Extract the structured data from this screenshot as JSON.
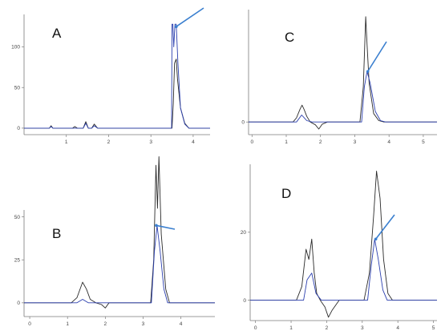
{
  "colors": {
    "trace_black": "#2a2a2a",
    "trace_blue": "#2b3fae",
    "arrow": "#3a7fcf",
    "axis": "#7a7a7a"
  },
  "chart_data": [
    {
      "type": "line",
      "panel_label": "A",
      "xlim": [
        0,
        4.4
      ],
      "ylim": [
        -8,
        140
      ],
      "xticks": [
        1,
        2,
        3,
        4
      ],
      "yticks": [
        0,
        50,
        100
      ],
      "x_tick_labels": [
        "1",
        "2",
        "3",
        "4"
      ],
      "y_tick_labels": [
        "0",
        "50",
        "100"
      ],
      "grid": false,
      "series": [
        {
          "color": "trace_black",
          "points": [
            [
              0,
              0
            ],
            [
              0.6,
              0
            ],
            [
              0.64,
              3
            ],
            [
              0.68,
              0
            ],
            [
              1.15,
              0
            ],
            [
              1.2,
              2
            ],
            [
              1.26,
              0
            ],
            [
              1.4,
              0
            ],
            [
              1.46,
              8
            ],
            [
              1.52,
              0
            ],
            [
              1.6,
              0
            ],
            [
              1.66,
              5
            ],
            [
              1.74,
              0
            ],
            [
              3.5,
              0
            ],
            [
              3.53,
              30
            ],
            [
              3.56,
              80
            ],
            [
              3.6,
              85
            ],
            [
              3.63,
              60
            ],
            [
              3.7,
              25
            ],
            [
              3.8,
              6
            ],
            [
              3.9,
              0
            ],
            [
              4.4,
              0
            ]
          ]
        },
        {
          "color": "trace_blue",
          "points": [
            [
              0,
              0
            ],
            [
              0.6,
              0
            ],
            [
              0.64,
              2
            ],
            [
              0.68,
              0
            ],
            [
              1.4,
              0
            ],
            [
              1.46,
              6
            ],
            [
              1.52,
              0
            ],
            [
              1.6,
              0
            ],
            [
              1.66,
              3
            ],
            [
              1.74,
              0
            ],
            [
              3.49,
              0
            ],
            [
              3.5,
              128
            ],
            [
              3.52,
              128
            ],
            [
              3.54,
              100
            ],
            [
              3.57,
              128
            ],
            [
              3.6,
              128
            ],
            [
              3.64,
              80
            ],
            [
              3.7,
              25
            ],
            [
              3.8,
              5
            ],
            [
              3.9,
              0
            ],
            [
              4.4,
              0
            ]
          ]
        }
      ],
      "arrow_tip": [
        3.6,
        125
      ]
    },
    {
      "type": "line",
      "panel_label": "B",
      "xlim": [
        -0.15,
        4.9
      ],
      "ylim": [
        -8,
        54
      ],
      "xticks": [
        0,
        1,
        2,
        3,
        4
      ],
      "yticks": [
        0,
        25,
        50
      ],
      "x_tick_labels": [
        "0",
        "1",
        "2",
        "3",
        "4"
      ],
      "y_tick_labels": [
        "0",
        "25",
        "50"
      ],
      "grid": false,
      "series": [
        {
          "color": "trace_black",
          "points": [
            [
              -0.15,
              0
            ],
            [
              1.1,
              0
            ],
            [
              1.25,
              3
            ],
            [
              1.4,
              12
            ],
            [
              1.5,
              8
            ],
            [
              1.6,
              2
            ],
            [
              1.75,
              0
            ],
            [
              1.9,
              -1
            ],
            [
              2.0,
              -3
            ],
            [
              2.1,
              0
            ],
            [
              3.2,
              0
            ],
            [
              3.28,
              25
            ],
            [
              3.34,
              80
            ],
            [
              3.38,
              55
            ],
            [
              3.42,
              85
            ],
            [
              3.48,
              40
            ],
            [
              3.6,
              8
            ],
            [
              3.7,
              0
            ],
            [
              4.9,
              0
            ]
          ]
        },
        {
          "color": "trace_blue",
          "points": [
            [
              -0.15,
              0
            ],
            [
              1.25,
              0
            ],
            [
              1.4,
              2
            ],
            [
              1.55,
              0
            ],
            [
              3.22,
              0
            ],
            [
              3.3,
              30
            ],
            [
              3.37,
              45
            ],
            [
              3.45,
              30
            ],
            [
              3.55,
              8
            ],
            [
              3.65,
              0
            ],
            [
              4.9,
              0
            ]
          ]
        }
      ],
      "arrow_tip": [
        3.35,
        45
      ]
    },
    {
      "type": "line",
      "panel_label": "C",
      "xlim": [
        -0.1,
        5.4
      ],
      "ylim": [
        -18,
        160
      ],
      "xticks": [
        0,
        1,
        2,
        3,
        4,
        5
      ],
      "yticks": [
        0
      ],
      "x_tick_labels": [
        "0",
        "1",
        "2",
        "3",
        "4",
        "5"
      ],
      "y_tick_labels": [
        "0"
      ],
      "grid": false,
      "series": [
        {
          "color": "trace_black",
          "points": [
            [
              -0.1,
              0
            ],
            [
              1.2,
              0
            ],
            [
              1.3,
              6
            ],
            [
              1.4,
              18
            ],
            [
              1.46,
              24
            ],
            [
              1.52,
              18
            ],
            [
              1.6,
              8
            ],
            [
              1.7,
              0
            ],
            [
              1.85,
              -4
            ],
            [
              1.95,
              -10
            ],
            [
              2.05,
              -3
            ],
            [
              2.2,
              0
            ],
            [
              3.15,
              0
            ],
            [
              3.25,
              50
            ],
            [
              3.32,
              150
            ],
            [
              3.36,
              110
            ],
            [
              3.42,
              55
            ],
            [
              3.55,
              12
            ],
            [
              3.7,
              2
            ],
            [
              3.85,
              0
            ],
            [
              5.4,
              0
            ]
          ]
        },
        {
          "color": "trace_blue",
          "points": [
            [
              -0.1,
              0
            ],
            [
              1.3,
              0
            ],
            [
              1.45,
              10
            ],
            [
              1.6,
              2
            ],
            [
              1.75,
              0
            ],
            [
              3.2,
              0
            ],
            [
              3.28,
              50
            ],
            [
              3.36,
              72
            ],
            [
              3.45,
              55
            ],
            [
              3.6,
              15
            ],
            [
              3.75,
              2
            ],
            [
              3.9,
              0
            ],
            [
              5.4,
              0
            ]
          ]
        }
      ],
      "arrow_tip": [
        3.38,
        72
      ]
    },
    {
      "type": "line",
      "panel_label": "D",
      "xlim": [
        -0.15,
        5.1
      ],
      "ylim": [
        -6,
        40
      ],
      "xticks": [
        0,
        1,
        2,
        3,
        4,
        5
      ],
      "yticks": [
        0,
        20
      ],
      "x_tick_labels": [
        "0",
        "1",
        "2",
        "3",
        "4",
        "5"
      ],
      "y_tick_labels": [
        "0",
        "20"
      ],
      "grid": false,
      "series": [
        {
          "color": "trace_black",
          "points": [
            [
              -0.15,
              0
            ],
            [
              1.15,
              0
            ],
            [
              1.3,
              4
            ],
            [
              1.42,
              15
            ],
            [
              1.5,
              12
            ],
            [
              1.58,
              18
            ],
            [
              1.65,
              8
            ],
            [
              1.72,
              2
            ],
            [
              1.82,
              0
            ],
            [
              1.95,
              -2
            ],
            [
              2.05,
              -5
            ],
            [
              2.15,
              -3
            ],
            [
              2.35,
              0
            ],
            [
              3.05,
              0
            ],
            [
              3.2,
              8
            ],
            [
              3.32,
              25
            ],
            [
              3.4,
              38
            ],
            [
              3.5,
              30
            ],
            [
              3.6,
              12
            ],
            [
              3.72,
              2
            ],
            [
              3.85,
              0
            ],
            [
              5.1,
              0
            ]
          ]
        },
        {
          "color": "trace_blue",
          "points": [
            [
              -0.15,
              0
            ],
            [
              1.35,
              0
            ],
            [
              1.45,
              6
            ],
            [
              1.58,
              8
            ],
            [
              1.7,
              2
            ],
            [
              1.85,
              0
            ],
            [
              3.15,
              0
            ],
            [
              3.25,
              10
            ],
            [
              3.35,
              18
            ],
            [
              3.45,
              12
            ],
            [
              3.58,
              3
            ],
            [
              3.7,
              0
            ],
            [
              5.1,
              0
            ]
          ]
        }
      ],
      "arrow_tip": [
        3.38,
        18
      ]
    }
  ]
}
